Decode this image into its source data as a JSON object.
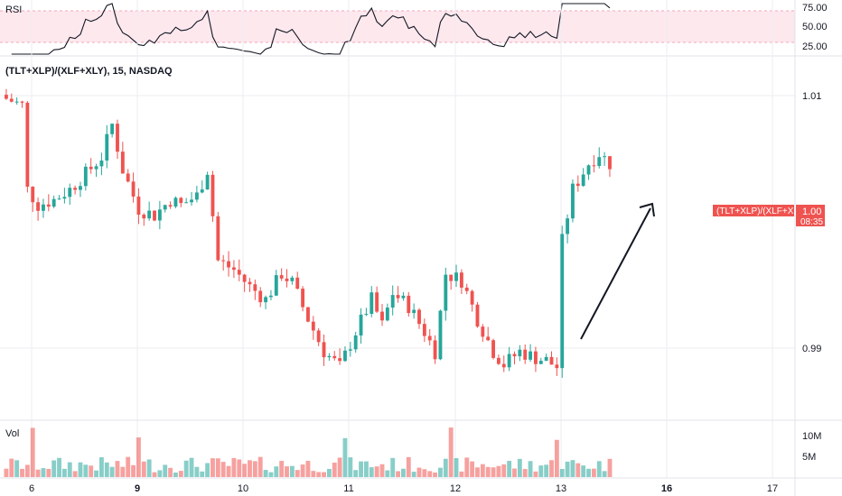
{
  "panes": {
    "rsi": {
      "label": "RSI",
      "ticks": [
        "75.00",
        "50.00",
        "25.00"
      ],
      "band": [
        30,
        70
      ]
    },
    "price": {
      "title": "(TLT+XLP)/(XLF+XLY), 15, NASDAQ",
      "ticks": [
        "1.01",
        "0.99"
      ]
    },
    "volume": {
      "label": "Vol",
      "ticks": [
        "10M",
        "5M"
      ]
    }
  },
  "price_badge": {
    "symbol": "(TLT+XLP)/(XLF+XLY)",
    "value": "1.00",
    "countdown": "08:35"
  },
  "x_ticks": [
    "6",
    "9",
    "10",
    "11",
    "12",
    "13",
    "16",
    "17"
  ],
  "colors": {
    "up": "#26a69a",
    "down": "#ef5350",
    "rsi_band": "#fde8ee",
    "rsi_band_border": "#f4a7b9",
    "badge": "#ef5350"
  },
  "annotation": {
    "type": "arrow",
    "direction": "up-right"
  },
  "chart_data": {
    "type": "candlestick",
    "title": "(TLT+XLP)/(XLF+XLY), 15, NASDAQ",
    "interval": "15",
    "x_ticks": [
      "6",
      "9",
      "10",
      "11",
      "12",
      "13",
      "16",
      "17"
    ],
    "close_path": [
      [
        0,
        1.01
      ],
      [
        3,
        1.0095
      ],
      [
        4,
        1.003
      ],
      [
        6,
        1.0018
      ],
      [
        9,
        1.0022
      ],
      [
        12,
        1.003
      ],
      [
        15,
        1.0042
      ],
      [
        18,
        1.0055
      ],
      [
        20,
        1.008
      ],
      [
        22,
        1.0045
      ],
      [
        25,
        1.0015
      ],
      [
        28,
        1.001
      ],
      [
        31,
        1.0022
      ],
      [
        33,
        1.0018
      ],
      [
        36,
        1.0025
      ],
      [
        38,
        1.0045
      ],
      [
        40,
        0.9975
      ],
      [
        43,
        0.9968
      ],
      [
        46,
        0.9955
      ],
      [
        49,
        0.9945
      ],
      [
        52,
        0.9965
      ],
      [
        54,
        0.9958
      ],
      [
        57,
        0.993
      ],
      [
        60,
        0.9905
      ],
      [
        63,
        0.9893
      ],
      [
        66,
        0.992
      ],
      [
        69,
        0.9945
      ],
      [
        71,
        0.9925
      ],
      [
        73,
        0.995
      ],
      [
        76,
        0.994
      ],
      [
        79,
        0.992
      ],
      [
        81,
        0.9905
      ],
      [
        83,
        0.9965
      ],
      [
        86,
        0.996
      ],
      [
        89,
        0.993
      ],
      [
        92,
        0.9905
      ],
      [
        94,
        0.9895
      ],
      [
        97,
        0.9905
      ],
      [
        100,
        0.99
      ],
      [
        102,
        0.9898
      ],
      [
        104,
        0.9893
      ],
      [
        105,
        0.999
      ],
      [
        107,
        1.003
      ],
      [
        110,
        1.005
      ],
      [
        112,
        1.0058
      ],
      [
        114,
        1.005
      ]
    ],
    "y_range": [
      0.987,
      1.011
    ],
    "n_bars": 115,
    "volume_range_millions": [
      0,
      12
    ],
    "rsi_range": [
      15,
      80
    ]
  }
}
